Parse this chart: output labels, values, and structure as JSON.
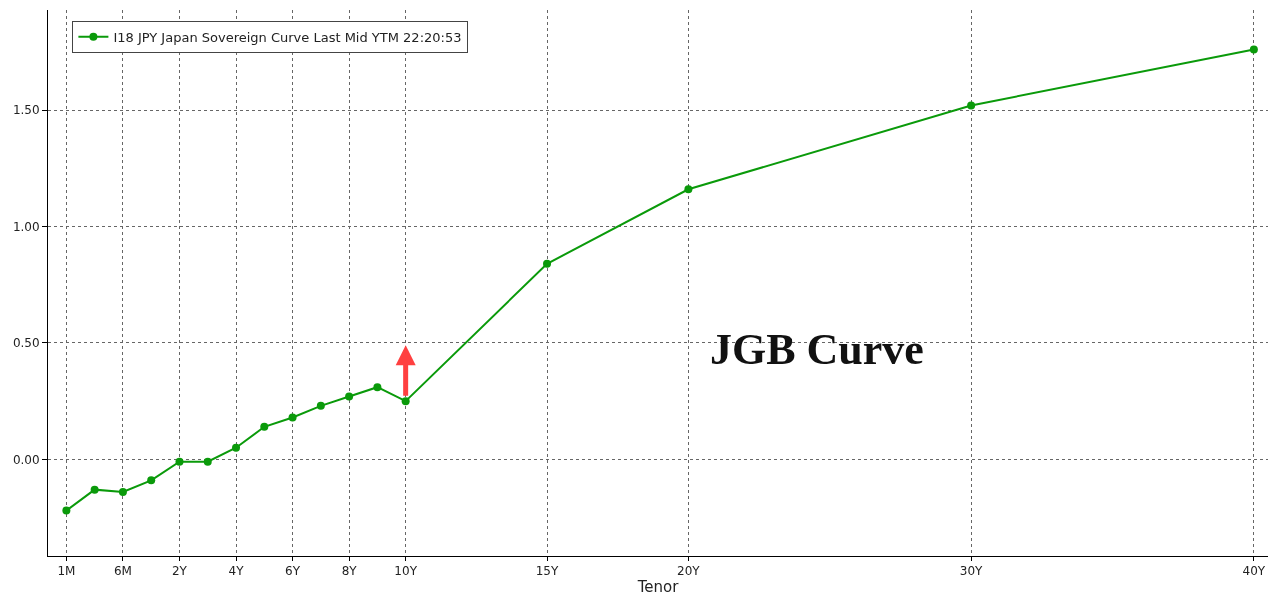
{
  "chart_data": {
    "type": "line",
    "xlabel": "Tenor",
    "categories": [
      "1M",
      null,
      "6M",
      null,
      "2Y",
      null,
      "4Y",
      null,
      "6Y",
      null,
      "8Y",
      null,
      "10Y",
      null,
      null,
      null,
      null,
      "15Y",
      null,
      null,
      null,
      null,
      "20Y",
      null,
      null,
      null,
      null,
      null,
      null,
      null,
      null,
      null,
      "30Y",
      null,
      null,
      null,
      null,
      null,
      null,
      null,
      null,
      null,
      "40Y"
    ],
    "series": [
      {
        "name": "I18 JPY Japan Sovereign Curve Last Mid YTM 22:20:53",
        "color": "#0a9a0a",
        "values": [
          -0.22,
          -0.13,
          -0.14,
          -0.09,
          -0.01,
          -0.01,
          0.05,
          0.14,
          0.18,
          0.23,
          0.27,
          0.31,
          0.25,
          null,
          null,
          null,
          null,
          0.84,
          null,
          null,
          null,
          null,
          1.16,
          null,
          null,
          null,
          null,
          null,
          null,
          null,
          null,
          null,
          1.52,
          null,
          null,
          null,
          null,
          null,
          null,
          null,
          null,
          null,
          1.76
        ]
      }
    ],
    "ylim": [
      -0.415,
      1.93
    ],
    "yticks": [
      {
        "value": 0,
        "label": "0.00"
      },
      {
        "value": 0.5,
        "label": "0.50"
      },
      {
        "value": 1,
        "label": "1.00"
      },
      {
        "value": 1.5,
        "label": "1.50"
      }
    ],
    "annotations": [
      "JGB Curve"
    ],
    "grid": true,
    "legend": "top left",
    "marker": "circle",
    "line_style": "solid"
  }
}
